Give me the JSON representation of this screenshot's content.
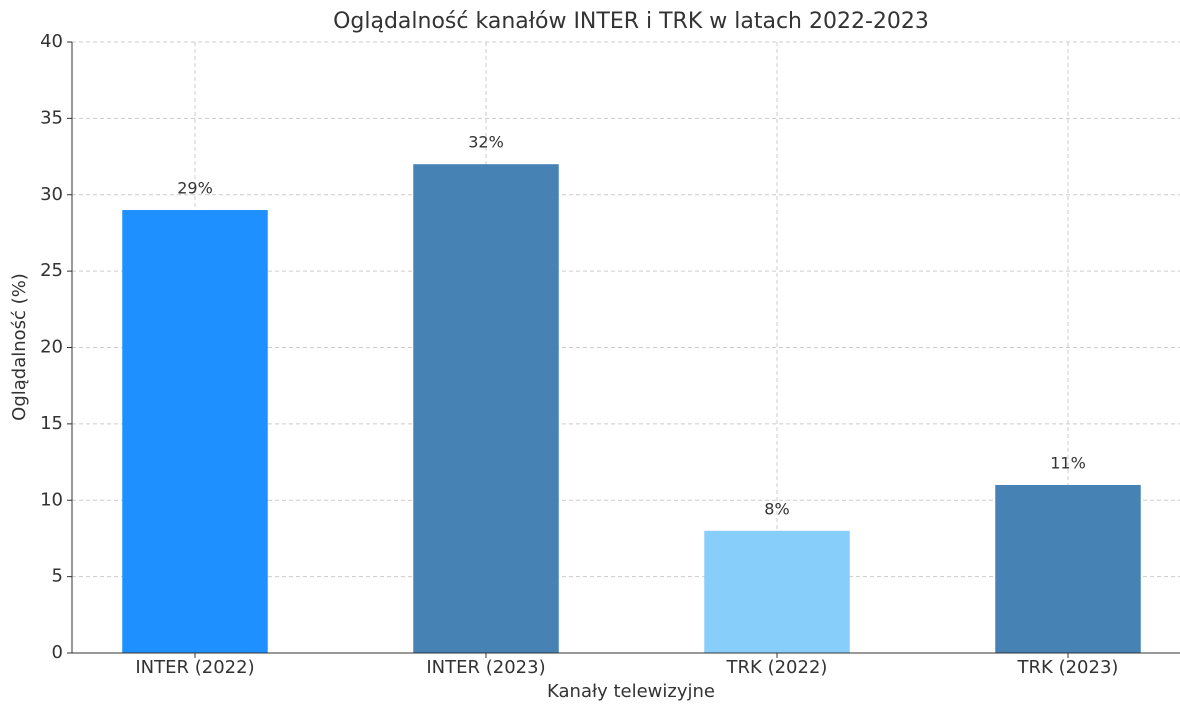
{
  "chart_data": {
    "type": "bar",
    "title": "Oglądalność kanałów INTER i TRK w latach 2022-2023",
    "x_label": "Kanały telewizyjne",
    "y_label": "Oglądalność (%)",
    "categories": [
      "INTER (2022)",
      "INTER (2023)",
      "TRK (2022)",
      "TRK (2023)"
    ],
    "values": [
      29,
      32,
      8,
      11
    ],
    "value_labels": [
      "29%",
      "32%",
      "8%",
      "11%"
    ],
    "colors": [
      "#1e90ff",
      "#4682b4",
      "#87cefa",
      "#4682b4"
    ],
    "ylim": [
      0,
      40
    ],
    "yticks": [
      0,
      5,
      10,
      15,
      20,
      25,
      30,
      35,
      40
    ],
    "grid": true
  }
}
